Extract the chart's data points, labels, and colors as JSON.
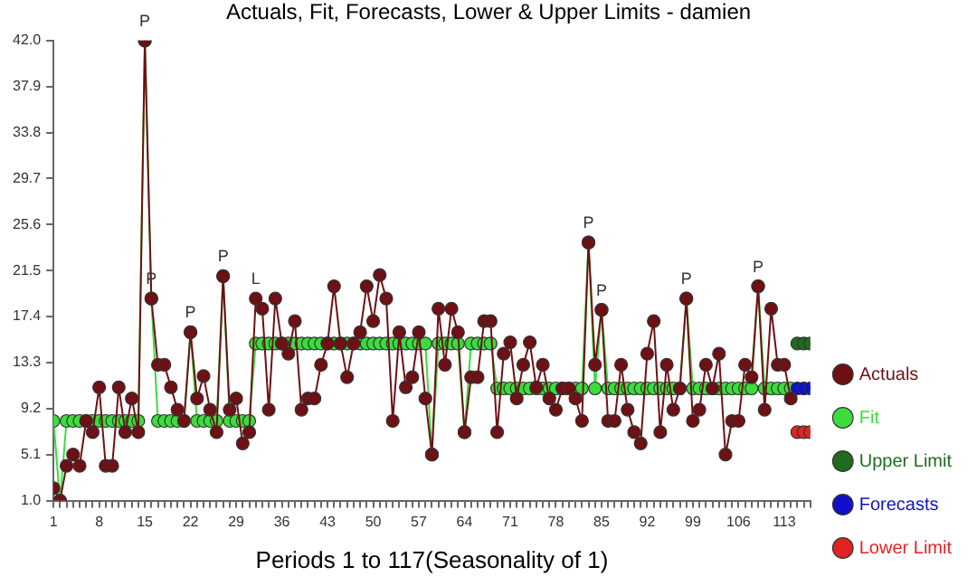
{
  "chart_data": {
    "type": "line",
    "title": "Actuals, Fit, Forecasts, Lower & Upper Limits - damien",
    "xlabel": "Periods 1 to 117(Seasonality of 1)",
    "xlim": [
      1,
      117
    ],
    "ylim": [
      1,
      42
    ],
    "xticks": [
      1,
      {
        "value": 2,
        "label": null
      },
      {
        "value": 3,
        "label": null
      },
      {
        "value": 4,
        "label": null
      },
      {
        "value": 5,
        "label": null
      },
      {
        "value": 6,
        "label": null
      },
      {
        "value": 7,
        "label": null
      },
      8,
      {
        "value": 9,
        "label": null
      },
      {
        "value": 10,
        "label": null
      },
      {
        "value": 11,
        "label": null
      },
      {
        "value": 12,
        "label": null
      },
      {
        "value": 13,
        "label": null
      },
      {
        "value": 14,
        "label": null
      },
      15,
      {
        "value": 16,
        "label": null
      },
      {
        "value": 17,
        "label": null
      },
      {
        "value": 18,
        "label": null
      },
      {
        "value": 19,
        "label": null
      },
      {
        "value": 20,
        "label": null
      },
      {
        "value": 21,
        "label": null
      },
      22,
      {
        "value": 23,
        "label": null
      },
      {
        "value": 24,
        "label": null
      },
      {
        "value": 25,
        "label": null
      },
      {
        "value": 26,
        "label": null
      },
      {
        "value": 27,
        "label": null
      },
      {
        "value": 28,
        "label": null
      },
      29,
      {
        "value": 30,
        "label": null
      },
      {
        "value": 31,
        "label": null
      },
      {
        "value": 32,
        "label": null
      },
      {
        "value": 33,
        "label": null
      },
      {
        "value": 34,
        "label": null
      },
      {
        "value": 35,
        "label": null
      },
      36,
      {
        "value": 37,
        "label": null
      },
      {
        "value": 38,
        "label": null
      },
      {
        "value": 39,
        "label": null
      },
      {
        "value": 40,
        "label": null
      },
      {
        "value": 41,
        "label": null
      },
      {
        "value": 42,
        "label": null
      },
      43,
      {
        "value": 44,
        "label": null
      },
      {
        "value": 45,
        "label": null
      },
      {
        "value": 46,
        "label": null
      },
      {
        "value": 47,
        "label": null
      },
      {
        "value": 48,
        "label": null
      },
      {
        "value": 49,
        "label": null
      },
      50,
      {
        "value": 51,
        "label": null
      },
      {
        "value": 52,
        "label": null
      },
      {
        "value": 53,
        "label": null
      },
      {
        "value": 54,
        "label": null
      },
      {
        "value": 55,
        "label": null
      },
      {
        "value": 56,
        "label": null
      },
      57,
      {
        "value": 58,
        "label": null
      },
      {
        "value": 59,
        "label": null
      },
      {
        "value": 60,
        "label": null
      },
      {
        "value": 61,
        "label": null
      },
      {
        "value": 62,
        "label": null
      },
      {
        "value": 63,
        "label": null
      },
      64,
      {
        "value": 65,
        "label": null
      },
      {
        "value": 66,
        "label": null
      },
      {
        "value": 67,
        "label": null
      },
      {
        "value": 68,
        "label": null
      },
      {
        "value": 69,
        "label": null
      },
      {
        "value": 70,
        "label": null
      },
      71,
      {
        "value": 72,
        "label": null
      },
      {
        "value": 73,
        "label": null
      },
      {
        "value": 74,
        "label": null
      },
      {
        "value": 75,
        "label": null
      },
      {
        "value": 76,
        "label": null
      },
      {
        "value": 77,
        "label": null
      },
      78,
      {
        "value": 79,
        "label": null
      },
      {
        "value": 80,
        "label": null
      },
      {
        "value": 81,
        "label": null
      },
      {
        "value": 82,
        "label": null
      },
      {
        "value": 83,
        "label": null
      },
      {
        "value": 84,
        "label": null
      },
      85,
      {
        "value": 86,
        "label": null
      },
      {
        "value": 87,
        "label": null
      },
      {
        "value": 88,
        "label": null
      },
      {
        "value": 89,
        "label": null
      },
      {
        "value": 90,
        "label": null
      },
      {
        "value": 91,
        "label": null
      },
      92,
      {
        "value": 93,
        "label": null
      },
      {
        "value": 94,
        "label": null
      },
      {
        "value": 95,
        "label": null
      },
      {
        "value": 96,
        "label": null
      },
      {
        "value": 97,
        "label": null
      },
      {
        "value": 98,
        "label": null
      },
      99,
      {
        "value": 100,
        "label": null
      },
      {
        "value": 101,
        "label": null
      },
      {
        "value": 102,
        "label": null
      },
      {
        "value": 103,
        "label": null
      },
      {
        "value": 104,
        "label": null
      },
      {
        "value": 105,
        "label": null
      },
      106,
      {
        "value": 107,
        "label": null
      },
      {
        "value": 108,
        "label": null
      },
      {
        "value": 109,
        "label": null
      },
      {
        "value": 110,
        "label": null
      },
      {
        "value": 111,
        "label": null
      },
      {
        "value": 112,
        "label": null
      },
      113,
      {
        "value": 114,
        "label": null
      },
      {
        "value": 115,
        "label": null
      },
      {
        "value": 116,
        "label": null
      },
      {
        "value": 117,
        "label": null
      }
    ],
    "yticks": [
      {
        "value": 1,
        "label": "1.0"
      },
      5.1,
      9.2,
      13.3,
      17.4,
      21.5,
      25.6,
      29.7,
      33.8,
      37.9,
      {
        "value": 42,
        "label": "42.0"
      }
    ],
    "grid": false,
    "legend": "right",
    "marker": "circle",
    "line_style": "solid",
    "series": [
      {
        "name": "Actuals",
        "type": "line",
        "color": "#6e1014",
        "x": [
          1,
          2,
          3,
          4,
          5,
          6,
          7,
          8,
          9,
          10,
          11,
          12,
          13,
          14,
          15,
          16,
          17,
          18,
          19,
          20,
          21,
          22,
          23,
          24,
          25,
          26,
          27,
          28,
          29,
          30,
          31,
          32,
          33,
          34,
          35,
          36,
          37,
          38,
          39,
          40,
          41,
          42,
          43,
          44,
          45,
          46,
          47,
          48,
          49,
          50,
          51,
          52,
          53,
          54,
          55,
          56,
          57,
          58,
          59,
          60,
          61,
          62,
          63,
          64,
          65,
          66,
          67,
          68,
          69,
          70,
          71,
          72,
          73,
          74,
          75,
          76,
          77,
          78,
          79,
          80,
          81,
          82,
          83,
          84,
          85,
          86,
          87,
          88,
          89,
          90,
          91,
          92,
          93,
          94,
          95,
          96,
          97,
          98,
          99,
          100,
          101,
          102,
          103,
          104,
          105,
          106,
          107,
          108,
          109,
          110,
          111,
          112,
          113,
          114
        ],
        "values": [
          2.1,
          1.0,
          4.1,
          5.1,
          4.1,
          8.1,
          7.1,
          11.1,
          4.1,
          4.1,
          11.1,
          7.1,
          10.1,
          7.1,
          42.0,
          19.0,
          13.1,
          13.1,
          11.1,
          9.1,
          8.1,
          16.0,
          10.1,
          12.1,
          9.1,
          7.1,
          21.0,
          9.1,
          10.1,
          6.1,
          7.1,
          19.0,
          18.1,
          9.1,
          19.0,
          15.0,
          14.1,
          17.0,
          9.1,
          10.1,
          10.1,
          13.1,
          15.0,
          20.1,
          15.0,
          12.0,
          15.0,
          16.0,
          20.1,
          17.0,
          21.1,
          19.0,
          8.1,
          16.0,
          11.1,
          12.0,
          16.0,
          10.1,
          5.1,
          18.1,
          13.1,
          18.1,
          16.0,
          7.1,
          12.0,
          12.0,
          17.0,
          17.0,
          7.1,
          14.1,
          15.1,
          10.1,
          13.1,
          15.1,
          11.1,
          13.1,
          10.1,
          9.1,
          11.0,
          11.0,
          10.1,
          8.1,
          24.0,
          13.1,
          18.0,
          8.1,
          8.1,
          13.1,
          9.1,
          7.1,
          6.1,
          14.1,
          17.0,
          7.1,
          13.1,
          9.1,
          11.0,
          19.0,
          8.1,
          9.1,
          13.1,
          11.0,
          14.1,
          5.1,
          8.1,
          8.1,
          13.1,
          12.0,
          20.1,
          9.1,
          18.1,
          13.1,
          13.1,
          10.1
        ]
      },
      {
        "name": "Fit",
        "type": "line",
        "color": "#3ddc3d",
        "x": [
          1,
          2,
          3,
          4,
          5,
          6,
          7,
          8,
          9,
          10,
          11,
          12,
          13,
          14,
          15,
          16,
          17,
          18,
          19,
          20,
          21,
          22,
          23,
          24,
          25,
          26,
          27,
          28,
          29,
          30,
          31,
          32,
          33,
          34,
          35,
          36,
          37,
          38,
          39,
          40,
          41,
          42,
          43,
          44,
          45,
          46,
          47,
          48,
          49,
          50,
          51,
          52,
          53,
          54,
          55,
          56,
          57,
          58,
          59,
          60,
          61,
          62,
          63,
          64,
          65,
          66,
          67,
          68,
          69,
          70,
          71,
          72,
          73,
          74,
          75,
          76,
          77,
          78,
          79,
          80,
          81,
          82,
          83,
          84,
          85,
          86,
          87,
          88,
          89,
          90,
          91,
          92,
          93,
          94,
          95,
          96,
          97,
          98,
          99,
          100,
          101,
          102,
          103,
          104,
          105,
          106,
          107,
          108,
          109,
          110,
          111,
          112,
          113,
          114
        ],
        "values": [
          8.1,
          1.0,
          8.1,
          8.1,
          8.1,
          8.1,
          8.1,
          8.1,
          8.1,
          8.1,
          8.1,
          8.1,
          8.1,
          8.1,
          42.0,
          19.0,
          8.1,
          8.1,
          8.1,
          8.1,
          8.1,
          16.0,
          8.1,
          8.1,
          8.1,
          8.1,
          21.0,
          8.1,
          8.1,
          8.1,
          8.1,
          15.0,
          15.0,
          15.0,
          15.0,
          15.0,
          15.0,
          15.0,
          15.0,
          15.0,
          15.0,
          15.0,
          15.0,
          15.0,
          15.0,
          15.0,
          15.0,
          15.0,
          15.0,
          15.0,
          15.0,
          15.0,
          15.0,
          15.0,
          15.0,
          15.0,
          15.0,
          15.0,
          5.1,
          15.0,
          15.0,
          15.0,
          15.0,
          7.1,
          15.0,
          15.0,
          15.0,
          15.0,
          11.0,
          11.0,
          11.0,
          11.0,
          11.0,
          11.0,
          11.0,
          11.0,
          11.0,
          11.0,
          11.0,
          11.0,
          11.0,
          11.0,
          24.0,
          11.0,
          18.0,
          11.0,
          11.0,
          11.0,
          11.0,
          11.0,
          11.0,
          11.0,
          11.0,
          11.0,
          11.0,
          11.0,
          11.0,
          19.0,
          11.0,
          11.0,
          11.0,
          11.0,
          11.0,
          11.0,
          11.0,
          11.0,
          11.0,
          11.0,
          20.1,
          11.0,
          11.0,
          11.0,
          11.0,
          11.0
        ]
      },
      {
        "name": "Upper Limit",
        "type": "scatter",
        "color": "#1f6b1f",
        "x": [
          115,
          116,
          117
        ],
        "values": [
          15.0,
          15.0,
          15.0
        ]
      },
      {
        "name": "Forecasts",
        "type": "scatter",
        "color": "#1010c8",
        "x": [
          115,
          116,
          117
        ],
        "values": [
          11.0,
          11.0,
          11.0
        ]
      },
      {
        "name": "Lower Limit",
        "type": "scatter",
        "color": "#e02424",
        "x": [
          115,
          116,
          117
        ],
        "values": [
          7.1,
          7.1,
          7.1
        ]
      }
    ],
    "annotations": [
      {
        "text": "P",
        "x": 15,
        "y": 42.0
      },
      {
        "text": "P",
        "x": 16,
        "y": 19.0
      },
      {
        "text": "P",
        "x": 22,
        "y": 16.0
      },
      {
        "text": "P",
        "x": 27,
        "y": 21.0
      },
      {
        "text": "L",
        "x": 32,
        "y": 19.0
      },
      {
        "text": "P",
        "x": 83,
        "y": 24.0
      },
      {
        "text": "P",
        "x": 85,
        "y": 18.0
      },
      {
        "text": "P",
        "x": 98,
        "y": 19.0
      },
      {
        "text": "P",
        "x": 109,
        "y": 20.1
      }
    ]
  }
}
